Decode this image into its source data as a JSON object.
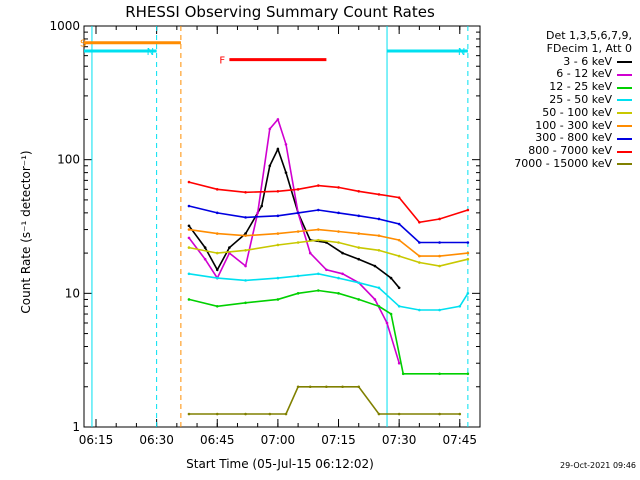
{
  "chart_data": {
    "type": "line",
    "title": "RHESSI Observing Summary Count Rates",
    "xlabel": "Start Time (05-Jul-15 06:12:02)",
    "ylabel": "Count Rate (s⁻¹ detector⁻¹)",
    "yscale": "log",
    "ylim": [
      1,
      1000
    ],
    "xlim": [
      "06:12:02",
      "07:50:00"
    ],
    "y_ticks": [
      {
        "value": 1,
        "label": "1"
      },
      {
        "value": 10,
        "label": "10"
      },
      {
        "value": 100,
        "label": "100"
      },
      {
        "value": 1000,
        "label": "1000"
      }
    ],
    "x_ticks": [
      {
        "value": "06:15",
        "label": "06:15"
      },
      {
        "value": "06:30",
        "label": "06:30"
      },
      {
        "value": "06:45",
        "label": "06:45"
      },
      {
        "value": "07:00",
        "label": "07:00"
      },
      {
        "value": "07:15",
        "label": "07:15"
      },
      {
        "value": "07:30",
        "label": "07:30"
      },
      {
        "value": "07:45",
        "label": "07:45"
      }
    ],
    "legend": {
      "placement": "right",
      "title_lines": [
        "Det 1,3,5,6,7,9,",
        "FDecim 1, Att 0"
      ]
    },
    "series": [
      {
        "name": "3 - 6 keV",
        "color": "#000000",
        "x": [
          "06:38",
          "06:42",
          "06:45",
          "06:48",
          "06:52",
          "06:56",
          "06:58",
          "07:00",
          "07:02",
          "07:05",
          "07:08",
          "07:12",
          "07:16",
          "07:20",
          "07:24",
          "07:28",
          "07:30"
        ],
        "y": [
          32,
          22,
          15,
          22,
          28,
          45,
          90,
          120,
          80,
          40,
          25,
          24,
          20,
          18,
          16,
          13,
          11
        ]
      },
      {
        "name": "6 - 12 keV",
        "color": "#d000d0",
        "x": [
          "06:38",
          "06:42",
          "06:45",
          "06:48",
          "06:52",
          "06:55",
          "06:58",
          "07:00",
          "07:02",
          "07:05",
          "07:08",
          "07:12",
          "07:16",
          "07:20",
          "07:24",
          "07:27",
          "07:30"
        ],
        "y": [
          26,
          18,
          13,
          20,
          16,
          40,
          170,
          200,
          130,
          40,
          20,
          15,
          14,
          12,
          9,
          6,
          3
        ]
      },
      {
        "name": "12 - 25 keV",
        "color": "#00d000",
        "x": [
          "06:38",
          "06:45",
          "06:52",
          "07:00",
          "07:05",
          "07:10",
          "07:15",
          "07:20",
          "07:25",
          "07:28",
          "07:31",
          "07:40",
          "07:47"
        ],
        "y": [
          9,
          8,
          8.5,
          9,
          10,
          10.5,
          10,
          9,
          8,
          7,
          2.5,
          2.5,
          2.5
        ]
      },
      {
        "name": "25 - 50 keV",
        "color": "#00e0f0",
        "x": [
          "06:38",
          "06:45",
          "06:52",
          "07:00",
          "07:05",
          "07:10",
          "07:15",
          "07:20",
          "07:25",
          "07:30",
          "07:35",
          "07:40",
          "07:45",
          "07:47"
        ],
        "y": [
          14,
          13,
          12.5,
          13,
          13.5,
          14,
          13,
          12,
          11,
          8,
          7.5,
          7.5,
          8,
          10
        ]
      },
      {
        "name": "50 - 100 keV",
        "color": "#c8c800",
        "x": [
          "06:38",
          "06:45",
          "06:52",
          "07:00",
          "07:05",
          "07:10",
          "07:15",
          "07:20",
          "07:25",
          "07:30",
          "07:35",
          "07:40",
          "07:47"
        ],
        "y": [
          22,
          20,
          21,
          23,
          24,
          25,
          24,
          22,
          21,
          19,
          17,
          16,
          18
        ]
      },
      {
        "name": "100 - 300 keV",
        "color": "#ff8c00",
        "x": [
          "06:38",
          "06:45",
          "06:52",
          "07:00",
          "07:05",
          "07:10",
          "07:15",
          "07:20",
          "07:25",
          "07:30",
          "07:35",
          "07:40",
          "07:47"
        ],
        "y": [
          30,
          28,
          27,
          28,
          29,
          30,
          29,
          28,
          27,
          25,
          19,
          19,
          20
        ]
      },
      {
        "name": "300 - 800 keV",
        "color": "#0000e0",
        "x": [
          "06:38",
          "06:45",
          "06:52",
          "07:00",
          "07:05",
          "07:10",
          "07:15",
          "07:20",
          "07:25",
          "07:30",
          "07:35",
          "07:40",
          "07:47"
        ],
        "y": [
          45,
          40,
          37,
          38,
          40,
          42,
          40,
          38,
          36,
          33,
          24,
          24,
          24
        ]
      },
      {
        "name": "800 - 7000 keV",
        "color": "#ff0000",
        "x": [
          "06:38",
          "06:45",
          "06:52",
          "07:00",
          "07:05",
          "07:10",
          "07:15",
          "07:20",
          "07:25",
          "07:30",
          "07:35",
          "07:40",
          "07:47"
        ],
        "y": [
          68,
          60,
          57,
          58,
          60,
          64,
          62,
          58,
          55,
          52,
          34,
          36,
          42
        ]
      },
      {
        "name": "7000 - 15000 keV",
        "color": "#808000",
        "x": [
          "06:38",
          "06:45",
          "06:52",
          "06:58",
          "07:02",
          "07:05",
          "07:08",
          "07:12",
          "07:16",
          "07:20",
          "07:25",
          "07:30",
          "07:40",
          "07:45"
        ],
        "y": [
          1.25,
          1.25,
          1.25,
          1.25,
          1.25,
          2,
          2,
          2,
          2,
          2,
          1.25,
          1.25,
          1.25,
          1.25
        ]
      }
    ],
    "markers": [
      {
        "label": "S",
        "color": "#ff8c00",
        "x_start": "06:12:02",
        "x_end": "06:36",
        "level": 750
      },
      {
        "label": "N",
        "color": "#00e0f0",
        "x_start": "06:12:02",
        "x_end": "06:30",
        "level": 650
      },
      {
        "label": "N",
        "color": "#00e0f0",
        "x_start": "07:27",
        "x_end": "07:47",
        "level": 650
      },
      {
        "label": "F",
        "color": "#ff0000",
        "x_start": "06:48",
        "x_end": "07:12",
        "level": 560
      }
    ],
    "vertical_lines": [
      {
        "x": "06:14",
        "color": "#00e0f0",
        "style": "solid"
      },
      {
        "x": "06:30",
        "color": "#00e0f0",
        "style": "dashed"
      },
      {
        "x": "06:36",
        "color": "#ff8c00",
        "style": "dashed"
      },
      {
        "x": "07:27",
        "color": "#00e0f0",
        "style": "solid"
      },
      {
        "x": "07:47",
        "color": "#00e0f0",
        "style": "dashed"
      }
    ]
  },
  "footer": {
    "timestamp": "29-Oct-2021 09:46"
  }
}
